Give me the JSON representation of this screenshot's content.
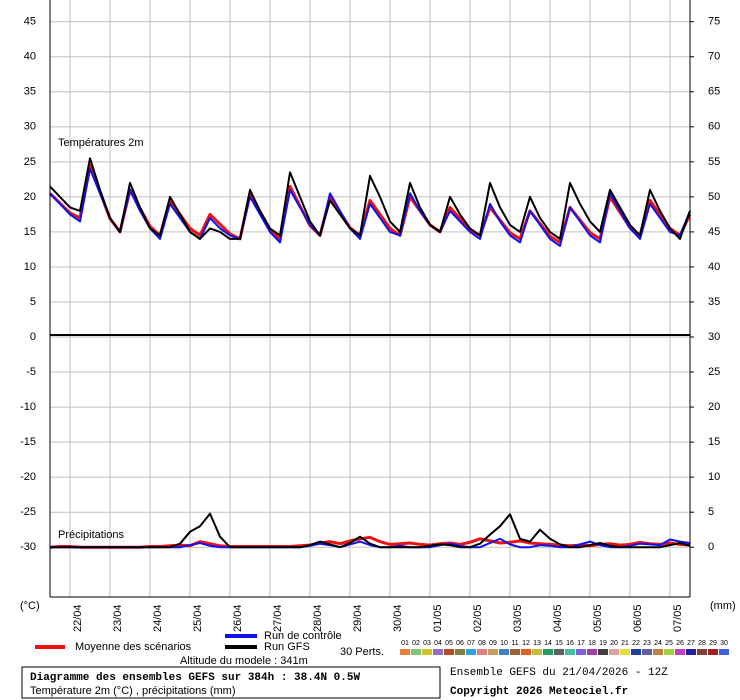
{
  "chart_data": [
    {
      "type": "line",
      "title": "Températures 2m",
      "ylim": [
        0,
        48.1
      ],
      "yticks": [
        5,
        10,
        15,
        20,
        25,
        30,
        35,
        40,
        45
      ],
      "y2lim": [
        30,
        78.1
      ],
      "y2ticks": [
        35,
        40,
        45,
        50,
        55,
        60,
        65,
        70,
        75
      ],
      "grid": true,
      "series": [
        {
          "name": "Moyenne des scénarios",
          "color": "#ee1111",
          "values": [
            20.5,
            19.1,
            17.7,
            17,
            24.5,
            20.7,
            16.9,
            15,
            21,
            18.4,
            15.8,
            14.5,
            19.5,
            17.5,
            15.5,
            14.5,
            17.5,
            16.1,
            14.7,
            14,
            20.5,
            17.9,
            15.3,
            14,
            21.5,
            18.7,
            15.9,
            14.5,
            20,
            17.8,
            15.6,
            14.5,
            19.5,
            17.5,
            15.5,
            14.5,
            20,
            18,
            16,
            15,
            18.5,
            16.9,
            15.3,
            14.5,
            18.5,
            16.7,
            14.9,
            14,
            18,
            16.2,
            14.4,
            13.5,
            18.5,
            16.7,
            14.9,
            14,
            20,
            17.8,
            15.6,
            14.5,
            19.5,
            17.5,
            15.5,
            14.5,
            17.5
          ]
        },
        {
          "name": "Run de contrôle",
          "color": "#1111ee",
          "values": [
            20.5,
            19,
            17.5,
            16.5,
            24,
            20.5,
            17,
            15,
            21,
            18,
            15.5,
            14,
            19,
            17,
            15,
            14,
            17,
            15.5,
            14.5,
            14,
            20,
            17.5,
            15,
            13.5,
            21,
            18.5,
            16,
            14.5,
            20.5,
            18,
            15.5,
            14,
            19,
            17,
            15,
            14.5,
            20.5,
            18,
            16,
            15,
            18,
            16.5,
            15,
            14,
            19,
            16.5,
            14.5,
            13.5,
            18,
            16,
            14,
            13,
            18.5,
            16.5,
            14.5,
            13.5,
            20.5,
            18,
            15.5,
            14,
            19,
            17,
            15,
            14.5,
            18
          ]
        },
        {
          "name": "Run GFS",
          "color": "#000000",
          "values": [
            21.5,
            20,
            18.5,
            18,
            25.5,
            21,
            17,
            15,
            22,
            18.5,
            15.5,
            14.5,
            20,
            17.5,
            15,
            14,
            15.5,
            15,
            14,
            14,
            21,
            18,
            15.5,
            14.5,
            23.5,
            20,
            16.5,
            14.5,
            19.5,
            17.5,
            15.5,
            14.5,
            23,
            20,
            16.5,
            15,
            22,
            18.5,
            16,
            15,
            20,
            17.5,
            15.5,
            14.5,
            22,
            18.5,
            16,
            15,
            20,
            17,
            15,
            14,
            22,
            19,
            16.5,
            15,
            21,
            18.5,
            16,
            14.5,
            21,
            18,
            15.5,
            14,
            18
          ]
        }
      ]
    },
    {
      "type": "line",
      "title": "Précipitations",
      "ylabel": "(°C)",
      "y2label": "(mm)",
      "categories": [
        null,
        null,
        "22/04",
        null,
        null,
        null,
        "23/04",
        null,
        null,
        null,
        "24/04",
        null,
        null,
        null,
        "25/04",
        null,
        null,
        null,
        "26/04",
        null,
        null,
        null,
        "27/04",
        null,
        null,
        null,
        "28/04",
        null,
        null,
        null,
        "29/04",
        null,
        null,
        null,
        "30/04",
        null,
        null,
        null,
        "01/05",
        null,
        null,
        null,
        "02/05",
        null,
        null,
        null,
        "03/05",
        null,
        null,
        null,
        "04/05",
        null,
        null,
        null,
        "05/05",
        null,
        null,
        null,
        "06/05",
        null,
        null,
        null,
        "07/05",
        null,
        null
      ],
      "ylim": [
        -37.1,
        0
      ],
      "yticks": [
        0,
        -5,
        -10,
        -15,
        -20,
        -25,
        -30
      ],
      "y2lim": [
        -7.1,
        30
      ],
      "y2ticks": [
        0,
        5,
        10,
        15,
        20,
        25,
        30
      ],
      "grid": true,
      "series": [
        {
          "color": "#ee1111",
          "axis": "y2",
          "values": [
            0,
            0.1,
            0.1,
            0,
            0,
            0,
            0,
            0,
            0,
            0,
            0.1,
            0.1,
            0.2,
            0.3,
            0.2,
            0.8,
            0.5,
            0.2,
            0.1,
            0.1,
            0.1,
            0.1,
            0.1,
            0.1,
            0.1,
            0.2,
            0.3,
            0.6,
            0.8,
            0.5,
            0.9,
            1.2,
            1.4,
            0.8,
            0.4,
            0.5,
            0.6,
            0.4,
            0.3,
            0.5,
            0.6,
            0.4,
            0.7,
            1.2,
            0.9,
            0.6,
            0.7,
            0.9,
            0.6,
            0.5,
            0.4,
            0.3,
            0.2,
            0.3,
            0.2,
            0.4,
            0.5,
            0.3,
            0.4,
            0.7,
            0.5,
            0.4,
            0.6,
            0.4,
            0.3
          ]
        },
        {
          "color": "#1111ee",
          "axis": "y2",
          "values": [
            0,
            0,
            0,
            0,
            0,
            0,
            0,
            0,
            0,
            0,
            0,
            0,
            0,
            0,
            0.3,
            0.6,
            0.2,
            0,
            0,
            0,
            0,
            0,
            0,
            0,
            0,
            0,
            0.2,
            0.5,
            0.3,
            0,
            0.4,
            0.8,
            0.3,
            0,
            0,
            0.2,
            0,
            0,
            0,
            0.3,
            0.5,
            0.2,
            0,
            0,
            0.6,
            1.2,
            0.4,
            0,
            0,
            0.3,
            0.2,
            0,
            0,
            0.4,
            0.8,
            0.3,
            0,
            0,
            0.2,
            0.5,
            0.4,
            0.3,
            1.1,
            0.8,
            0.6
          ]
        },
        {
          "color": "#000000",
          "axis": "y2",
          "values": [
            0,
            0,
            0,
            0,
            0,
            0,
            0,
            0,
            0,
            0,
            0,
            0,
            0,
            0.5,
            2.2,
            3,
            4.8,
            1.5,
            0,
            0,
            0,
            0,
            0,
            0,
            0,
            0,
            0.3,
            0.8,
            0.4,
            0,
            0.6,
            1.5,
            0.5,
            0,
            0,
            0,
            0,
            0,
            0.2,
            0.4,
            0.3,
            0,
            0,
            0.5,
            1.8,
            3,
            4.7,
            1.2,
            0.8,
            2.5,
            1.2,
            0.4,
            0,
            0,
            0.3,
            0.6,
            0.2,
            0,
            0,
            0,
            0,
            0,
            0.3,
            0.6,
            0.2
          ]
        }
      ]
    }
  ],
  "perturbations": {
    "label": "30 Perts.",
    "members": [
      {
        "label": "01",
        "color": "#e8803a"
      },
      {
        "label": "02",
        "color": "#7fbf7f"
      },
      {
        "label": "03",
        "color": "#d4c020"
      },
      {
        "label": "04",
        "color": "#9070c0"
      },
      {
        "label": "05",
        "color": "#b05020"
      },
      {
        "label": "06",
        "color": "#808040"
      },
      {
        "label": "07",
        "color": "#30a0e0"
      },
      {
        "label": "08",
        "color": "#e08080"
      },
      {
        "label": "09",
        "color": "#c0a060"
      },
      {
        "label": "10",
        "color": "#4080c0"
      },
      {
        "label": "11",
        "color": "#a06030"
      },
      {
        "label": "12",
        "color": "#e06020"
      },
      {
        "label": "13",
        "color": "#c0c040"
      },
      {
        "label": "14",
        "color": "#20a060"
      },
      {
        "label": "15",
        "color": "#606060"
      },
      {
        "label": "16",
        "color": "#40c0a0"
      },
      {
        "label": "17",
        "color": "#8060e0"
      },
      {
        "label": "18",
        "color": "#a040a0"
      },
      {
        "label": "19",
        "color": "#404040"
      },
      {
        "label": "20",
        "color": "#e0a0a0"
      },
      {
        "label": "21",
        "color": "#e0e040"
      },
      {
        "label": "22",
        "color": "#2040a0"
      },
      {
        "label": "23",
        "color": "#6060a0"
      },
      {
        "label": "24",
        "color": "#c08040"
      },
      {
        "label": "25",
        "color": "#a0d040"
      },
      {
        "label": "26",
        "color": "#c040c0"
      },
      {
        "label": "27",
        "color": "#2020a0"
      },
      {
        "label": "28",
        "color": "#804040"
      },
      {
        "label": "29",
        "color": "#a02020"
      },
      {
        "label": "30",
        "color": "#4060e0"
      }
    ]
  },
  "footer": {
    "altitude": "Altitude du modele : 341m",
    "title": "Diagramme des ensembles GEFS sur 384h : 38.4N 0.5W",
    "subtitle": "Température 2m (°C) , précipitations (mm)",
    "run": "Ensemble GEFS du 21/04/2026 - 12Z",
    "copyright": "Copyright 2026 Meteociel.fr"
  }
}
